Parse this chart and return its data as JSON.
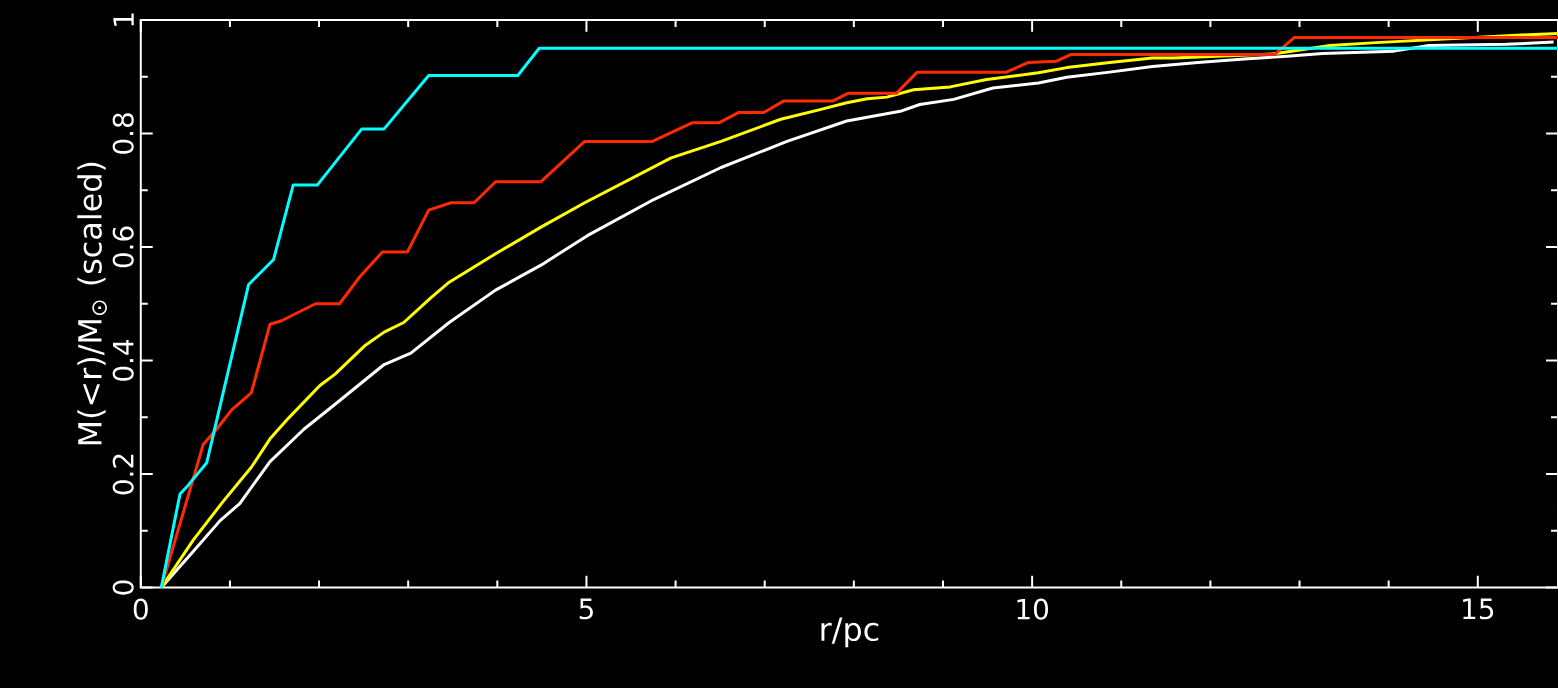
{
  "chart_data": {
    "type": "line",
    "xlabel": "r/pc",
    "ylabel": "M(<r)/M$_{⊙}$ (scaled)",
    "xlim": [
      0,
      15.9
    ],
    "ylim": [
      0,
      1
    ],
    "xticks": [
      0,
      {
        "value": 1,
        "label": null
      },
      {
        "value": 2,
        "label": null
      },
      {
        "value": 3,
        "label": null
      },
      {
        "value": 4,
        "label": null
      },
      5,
      {
        "value": 6,
        "label": null
      },
      {
        "value": 7,
        "label": null
      },
      {
        "value": 8,
        "label": null
      },
      {
        "value": 9,
        "label": null
      },
      10,
      {
        "value": 11,
        "label": null
      },
      {
        "value": 12,
        "label": null
      },
      {
        "value": 13,
        "label": null
      },
      {
        "value": 14,
        "label": null
      },
      15
    ],
    "yticks": [
      0,
      {
        "value": 0.1,
        "label": null
      },
      0.2,
      {
        "value": 0.3,
        "label": null
      },
      0.4,
      {
        "value": 0.5,
        "label": null
      },
      0.6,
      {
        "value": 0.7,
        "label": null
      },
      0.8,
      {
        "value": 0.9,
        "label": null
      },
      1
    ],
    "series": [
      {
        "color": "#ffffff",
        "x": [
          0.23,
          0.59,
          0.89,
          1.11,
          1.45,
          1.83,
          2.18,
          2.73,
          3.03,
          3.46,
          3.98,
          4.49,
          5.01,
          5.76,
          6.51,
          7.25,
          7.92,
          8.52,
          8.74,
          9.12,
          9.56,
          10.07,
          10.39,
          10.87,
          11.35,
          11.86,
          12.38,
          12.86,
          13.26,
          14.06,
          14.45,
          15.32,
          15.85
        ],
        "values": [
          0,
          0.064,
          0.118,
          0.148,
          0.222,
          0.279,
          0.323,
          0.393,
          0.413,
          0.467,
          0.524,
          0.568,
          0.62,
          0.684,
          0.74,
          0.786,
          0.822,
          0.839,
          0.851,
          0.86,
          0.88,
          0.889,
          0.899,
          0.908,
          0.918,
          0.925,
          0.931,
          0.936,
          0.941,
          0.945,
          0.955,
          0.957,
          0.961
        ]
      },
      {
        "color": "#ffff00",
        "x": [
          0.23,
          0.59,
          0.92,
          1.24,
          1.45,
          1.66,
          2.01,
          2.18,
          2.52,
          2.73,
          2.95,
          3.25,
          3.46,
          3.98,
          4.49,
          4.98,
          5.95,
          6.51,
          7.18,
          7.62,
          7.92,
          8.15,
          8.37,
          8.67,
          9.08,
          9.49,
          10.07,
          10.39,
          10.87,
          11.35,
          11.59,
          12.7,
          13.34,
          13.86,
          15.57,
          15.9
        ],
        "values": [
          0,
          0.084,
          0.151,
          0.212,
          0.262,
          0.299,
          0.356,
          0.376,
          0.427,
          0.45,
          0.467,
          0.51,
          0.538,
          0.588,
          0.635,
          0.678,
          0.757,
          0.786,
          0.825,
          0.842,
          0.854,
          0.861,
          0.864,
          0.877,
          0.882,
          0.895,
          0.907,
          0.916,
          0.925,
          0.933,
          0.933,
          0.94,
          0.955,
          0.96,
          0.974,
          0.976
        ]
      },
      {
        "color": "#ff2a00",
        "x": [
          0.23,
          0.7,
          0.85,
          1.02,
          1.24,
          1.45,
          1.58,
          1.96,
          2.23,
          2.46,
          2.71,
          2.99,
          3.23,
          3.48,
          3.74,
          3.98,
          4.49,
          4.98,
          5.74,
          6.19,
          6.49,
          6.71,
          6.99,
          7.21,
          7.76,
          7.94,
          8.48,
          8.71,
          9.71,
          9.96,
          10.27,
          10.43,
          12.72,
          12.94,
          15.9
        ],
        "values": [
          0,
          0.252,
          0.279,
          0.313,
          0.343,
          0.464,
          0.47,
          0.5,
          0.5,
          0.548,
          0.591,
          0.591,
          0.665,
          0.678,
          0.678,
          0.715,
          0.715,
          0.786,
          0.786,
          0.819,
          0.819,
          0.837,
          0.837,
          0.857,
          0.857,
          0.871,
          0.871,
          0.908,
          0.908,
          0.925,
          0.927,
          0.939,
          0.939,
          0.969,
          0.969
        ]
      },
      {
        "color": "#00ffff",
        "x": [
          0.23,
          0.44,
          0.53,
          0.74,
          1.21,
          1.49,
          1.71,
          1.98,
          2.48,
          2.73,
          3.23,
          4.23,
          4.47,
          15.9
        ],
        "values": [
          0,
          0.165,
          0.18,
          0.22,
          0.534,
          0.578,
          0.709,
          0.709,
          0.808,
          0.808,
          0.902,
          0.902,
          0.95,
          0.95
        ]
      }
    ]
  }
}
